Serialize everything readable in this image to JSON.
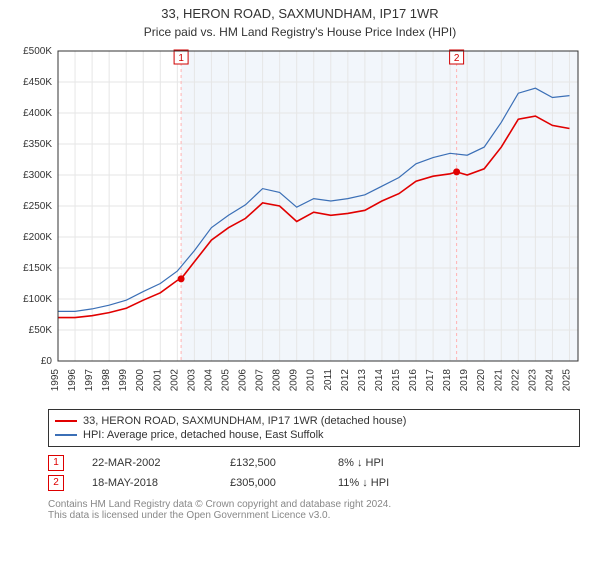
{
  "title_line1": "33, HERON ROAD, SAXMUNDHAM, IP17 1WR",
  "title_line2": "Price paid vs. HM Land Registry's House Price Index (HPI)",
  "chart": {
    "type": "line",
    "background_color": "#ffffff",
    "plot_bg_left": "#ffffff",
    "plot_bg_band": "#f2f6fb",
    "grid_color": "#e6e6e6",
    "minor_grid_color": "#f2f2f2",
    "axis_color": "#333333",
    "axis_fontsize": 10,
    "x_years": [
      1995,
      1996,
      1997,
      1998,
      1999,
      2000,
      2001,
      2002,
      2003,
      2004,
      2005,
      2006,
      2007,
      2008,
      2009,
      2010,
      2011,
      2012,
      2013,
      2014,
      2015,
      2016,
      2017,
      2018,
      2019,
      2020,
      2021,
      2022,
      2023,
      2024,
      2025
    ],
    "y_ticks": [
      0,
      50000,
      100000,
      150000,
      200000,
      250000,
      300000,
      350000,
      400000,
      450000,
      500000
    ],
    "y_tick_labels": [
      "£0",
      "£50K",
      "£100K",
      "£150K",
      "£200K",
      "£250K",
      "£300K",
      "£350K",
      "£400K",
      "£450K",
      "£500K"
    ],
    "ylim": [
      0,
      500000
    ],
    "xlim": [
      1995,
      2025.5
    ],
    "band_start": 2002.22,
    "series": [
      {
        "name": "property",
        "label": "33, HERON ROAD, SAXMUNDHAM, IP17 1WR (detached house)",
        "color": "#e10000",
        "line_width": 1.6,
        "data": [
          [
            1995,
            70000
          ],
          [
            1996,
            70000
          ],
          [
            1997,
            73000
          ],
          [
            1998,
            78000
          ],
          [
            1999,
            85000
          ],
          [
            2000,
            98000
          ],
          [
            2001,
            110000
          ],
          [
            2002,
            130000
          ],
          [
            2002.22,
            132500
          ],
          [
            2003,
            160000
          ],
          [
            2004,
            195000
          ],
          [
            2005,
            215000
          ],
          [
            2006,
            230000
          ],
          [
            2007,
            255000
          ],
          [
            2008,
            250000
          ],
          [
            2009,
            225000
          ],
          [
            2010,
            240000
          ],
          [
            2011,
            235000
          ],
          [
            2012,
            238000
          ],
          [
            2013,
            243000
          ],
          [
            2014,
            258000
          ],
          [
            2015,
            270000
          ],
          [
            2016,
            290000
          ],
          [
            2017,
            298000
          ],
          [
            2018,
            302000
          ],
          [
            2018.38,
            305000
          ],
          [
            2019,
            300000
          ],
          [
            2020,
            310000
          ],
          [
            2021,
            345000
          ],
          [
            2022,
            390000
          ],
          [
            2023,
            395000
          ],
          [
            2024,
            380000
          ],
          [
            2025,
            375000
          ]
        ]
      },
      {
        "name": "hpi",
        "label": "HPI: Average price, detached house, East Suffolk",
        "color": "#3b6fb6",
        "line_width": 1.2,
        "data": [
          [
            1995,
            80000
          ],
          [
            1996,
            80000
          ],
          [
            1997,
            84000
          ],
          [
            1998,
            90000
          ],
          [
            1999,
            98000
          ],
          [
            2000,
            112000
          ],
          [
            2001,
            125000
          ],
          [
            2002,
            145000
          ],
          [
            2003,
            178000
          ],
          [
            2004,
            215000
          ],
          [
            2005,
            235000
          ],
          [
            2006,
            252000
          ],
          [
            2007,
            278000
          ],
          [
            2008,
            272000
          ],
          [
            2009,
            248000
          ],
          [
            2010,
            262000
          ],
          [
            2011,
            258000
          ],
          [
            2012,
            262000
          ],
          [
            2013,
            268000
          ],
          [
            2014,
            282000
          ],
          [
            2015,
            296000
          ],
          [
            2016,
            318000
          ],
          [
            2017,
            328000
          ],
          [
            2018,
            335000
          ],
          [
            2019,
            332000
          ],
          [
            2020,
            345000
          ],
          [
            2021,
            385000
          ],
          [
            2022,
            432000
          ],
          [
            2023,
            440000
          ],
          [
            2024,
            425000
          ],
          [
            2025,
            428000
          ]
        ]
      }
    ],
    "sale_markers": [
      {
        "n": 1,
        "x": 2002.22,
        "y": 132500,
        "vline_color": "#ffb3b3",
        "vline_dash": "3,3"
      },
      {
        "n": 2,
        "x": 2018.38,
        "y": 305000,
        "vline_color": "#ffb3b3",
        "vline_dash": "3,3"
      }
    ],
    "marker_box_fill": "#ffffff",
    "marker_box_stroke": "#d00000",
    "marker_text_color": "#d00000",
    "marker_box_top_y": 14
  },
  "legend": {
    "items": [
      {
        "color": "#e10000",
        "label": "33, HERON ROAD, SAXMUNDHAM, IP17 1WR (detached house)"
      },
      {
        "color": "#3b6fb6",
        "label": "HPI: Average price, detached house, East Suffolk"
      }
    ]
  },
  "sales": [
    {
      "n": "1",
      "date": "22-MAR-2002",
      "price": "£132,500",
      "diff": "8% ↓ HPI"
    },
    {
      "n": "2",
      "date": "18-MAY-2018",
      "price": "£305,000",
      "diff": "11% ↓ HPI"
    }
  ],
  "footer_line1": "Contains HM Land Registry data © Crown copyright and database right 2024.",
  "footer_line2": "This data is licensed under the Open Government Licence v3.0."
}
